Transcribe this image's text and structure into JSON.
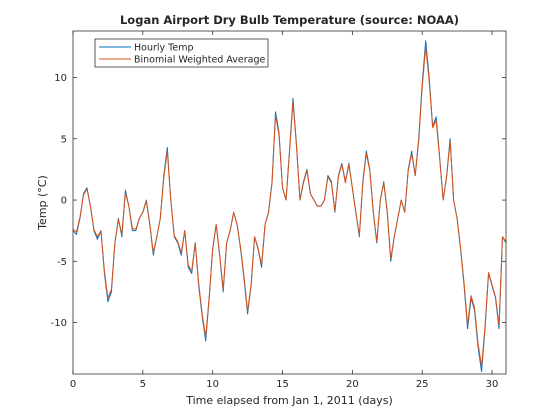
{
  "chart_data": {
    "type": "line",
    "title": "Logan Airport Dry Bulb Temperature (source: NOAA)",
    "xlabel": "Time elapsed from Jan 1, 2011 (days)",
    "ylabel": "Temp (°C)",
    "xlim": [
      0,
      31
    ],
    "ylim": [
      -14.2,
      13.8
    ],
    "xticks": [
      0,
      5,
      10,
      15,
      20,
      25,
      30
    ],
    "yticks": [
      -10,
      -5,
      0,
      5,
      10
    ],
    "grid": false,
    "legend_location": "top-left",
    "series": [
      {
        "name": "Hourly Temp",
        "color": "#0072BD",
        "x": [
          0,
          0.25,
          0.5,
          0.75,
          1,
          1.25,
          1.5,
          1.75,
          2,
          2.25,
          2.5,
          2.75,
          3,
          3.25,
          3.5,
          3.75,
          4,
          4.25,
          4.5,
          4.75,
          5,
          5.25,
          5.5,
          5.75,
          6,
          6.25,
          6.5,
          6.75,
          7,
          7.25,
          7.5,
          7.75,
          8,
          8.25,
          8.5,
          8.75,
          9,
          9.25,
          9.5,
          9.75,
          10,
          10.25,
          10.5,
          10.75,
          11,
          11.25,
          11.5,
          11.75,
          12,
          12.25,
          12.5,
          12.75,
          13,
          13.25,
          13.5,
          13.75,
          14,
          14.25,
          14.5,
          14.75,
          15,
          15.25,
          15.5,
          15.75,
          16,
          16.25,
          16.5,
          16.75,
          17,
          17.25,
          17.5,
          17.75,
          18,
          18.25,
          18.5,
          18.75,
          19,
          19.25,
          19.5,
          19.75,
          20,
          20.25,
          20.5,
          20.75,
          21,
          21.25,
          21.5,
          21.75,
          22,
          22.25,
          22.5,
          22.75,
          23,
          23.25,
          23.5,
          23.75,
          24,
          24.25,
          24.5,
          24.75,
          25,
          25.25,
          25.5,
          25.75,
          26,
          26.25,
          26.5,
          26.75,
          27,
          27.25,
          27.5,
          27.75,
          28,
          28.25,
          28.5,
          28.75,
          29,
          29.25,
          29.5,
          29.75,
          30,
          30.25,
          30.5,
          30.75,
          31
        ],
        "y": [
          -2.5,
          -2.8,
          -1.5,
          0.5,
          1,
          -0.5,
          -2.5,
          -3.2,
          -2.5,
          -6,
          -8.3,
          -7.5,
          -3.5,
          -1.5,
          -3,
          0.8,
          -0.5,
          -2.5,
          -2.5,
          -1.5,
          -1,
          0,
          -2,
          -4.5,
          -3,
          -1.5,
          2,
          4.3,
          0,
          -3,
          -3.5,
          -4.5,
          -2.5,
          -5.5,
          -6,
          -3.5,
          -7,
          -9.5,
          -11.5,
          -8,
          -4,
          -2,
          -4.5,
          -7.5,
          -3.5,
          -2.5,
          -1,
          -2,
          -4,
          -6.5,
          -9.3,
          -7,
          -3,
          -4,
          -5.5,
          -2,
          -1,
          1.5,
          7.2,
          5.5,
          1,
          0,
          4,
          8.3,
          4.5,
          0,
          1.5,
          2.5,
          0.5,
          0,
          -0.5,
          -0.5,
          0,
          2,
          1.5,
          -1,
          2,
          3,
          1.5,
          3,
          1,
          -1,
          -3,
          1.5,
          4,
          2.5,
          -1,
          -3.5,
          0,
          1.5,
          -1,
          -5,
          -3,
          -1.5,
          0,
          -1,
          2.5,
          4,
          2,
          5,
          9.5,
          13,
          10,
          6,
          6.8,
          3.5,
          0,
          2,
          5,
          0,
          -1.5,
          -4,
          -7,
          -10.5,
          -8,
          -9,
          -12,
          -14,
          -10.5,
          -6,
          -7,
          -8,
          -10.5,
          -3,
          -3.5
        ]
      },
      {
        "name": "Binomial Weighted Average",
        "color": "#D95319",
        "x": [
          0,
          0.25,
          0.5,
          0.75,
          1,
          1.25,
          1.5,
          1.75,
          2,
          2.25,
          2.5,
          2.75,
          3,
          3.25,
          3.5,
          3.75,
          4,
          4.25,
          4.5,
          4.75,
          5,
          5.25,
          5.5,
          5.75,
          6,
          6.25,
          6.5,
          6.75,
          7,
          7.25,
          7.5,
          7.75,
          8,
          8.25,
          8.5,
          8.75,
          9,
          9.25,
          9.5,
          9.75,
          10,
          10.25,
          10.5,
          10.75,
          11,
          11.25,
          11.5,
          11.75,
          12,
          12.25,
          12.5,
          12.75,
          13,
          13.25,
          13.5,
          13.75,
          14,
          14.25,
          14.5,
          14.75,
          15,
          15.25,
          15.5,
          15.75,
          16,
          16.25,
          16.5,
          16.75,
          17,
          17.25,
          17.5,
          17.75,
          18,
          18.25,
          18.5,
          18.75,
          19,
          19.25,
          19.5,
          19.75,
          20,
          20.25,
          20.5,
          20.75,
          21,
          21.25,
          21.5,
          21.75,
          22,
          22.25,
          22.5,
          22.75,
          23,
          23.25,
          23.5,
          23.75,
          24,
          24.25,
          24.5,
          24.75,
          25,
          25.25,
          25.5,
          25.75,
          26,
          26.25,
          26.5,
          26.75,
          27,
          27.25,
          27.5,
          27.75,
          28,
          28.25,
          28.5,
          28.75,
          29,
          29.25,
          29.5,
          29.75,
          30,
          30.25,
          30.5,
          30.75,
          31
        ],
        "y": [
          -2.4,
          -2.6,
          -1.4,
          0.4,
          0.9,
          -0.5,
          -2.4,
          -3,
          -2.5,
          -5.8,
          -8,
          -7.3,
          -3.5,
          -1.6,
          -2.8,
          0.6,
          -0.5,
          -2.3,
          -2.4,
          -1.5,
          -1,
          -0.1,
          -2,
          -4.3,
          -3,
          -1.5,
          1.8,
          4,
          0,
          -2.9,
          -3.4,
          -4.3,
          -2.5,
          -5.3,
          -5.8,
          -3.5,
          -6.8,
          -9.3,
          -11.2,
          -7.9,
          -4,
          -2,
          -4.4,
          -7.3,
          -3.5,
          -2.5,
          -1,
          -2,
          -3.9,
          -6.3,
          -9.1,
          -6.9,
          -3,
          -3.9,
          -5.3,
          -2,
          -1,
          1.4,
          6.9,
          5.3,
          1,
          0,
          3.9,
          8,
          4.4,
          0,
          1.4,
          2.4,
          0.5,
          0,
          -0.5,
          -0.5,
          0,
          1.9,
          1.4,
          -0.9,
          1.9,
          2.9,
          1.4,
          2.9,
          1,
          -1,
          -2.9,
          1.4,
          3.8,
          2.4,
          -1,
          -3.4,
          0,
          1.4,
          -1,
          -4.8,
          -3,
          -1.5,
          0,
          -1,
          2.4,
          3.8,
          2,
          4.8,
          9.2,
          12.5,
          9.7,
          5.9,
          6.5,
          3.4,
          0,
          1.9,
          4.8,
          0,
          -1.5,
          -3.9,
          -6.8,
          -10.2,
          -7.8,
          -8.8,
          -11.7,
          -13.6,
          -10.3,
          -5.9,
          -6.9,
          -7.9,
          -10.2,
          -3,
          -3.4
        ]
      }
    ]
  }
}
